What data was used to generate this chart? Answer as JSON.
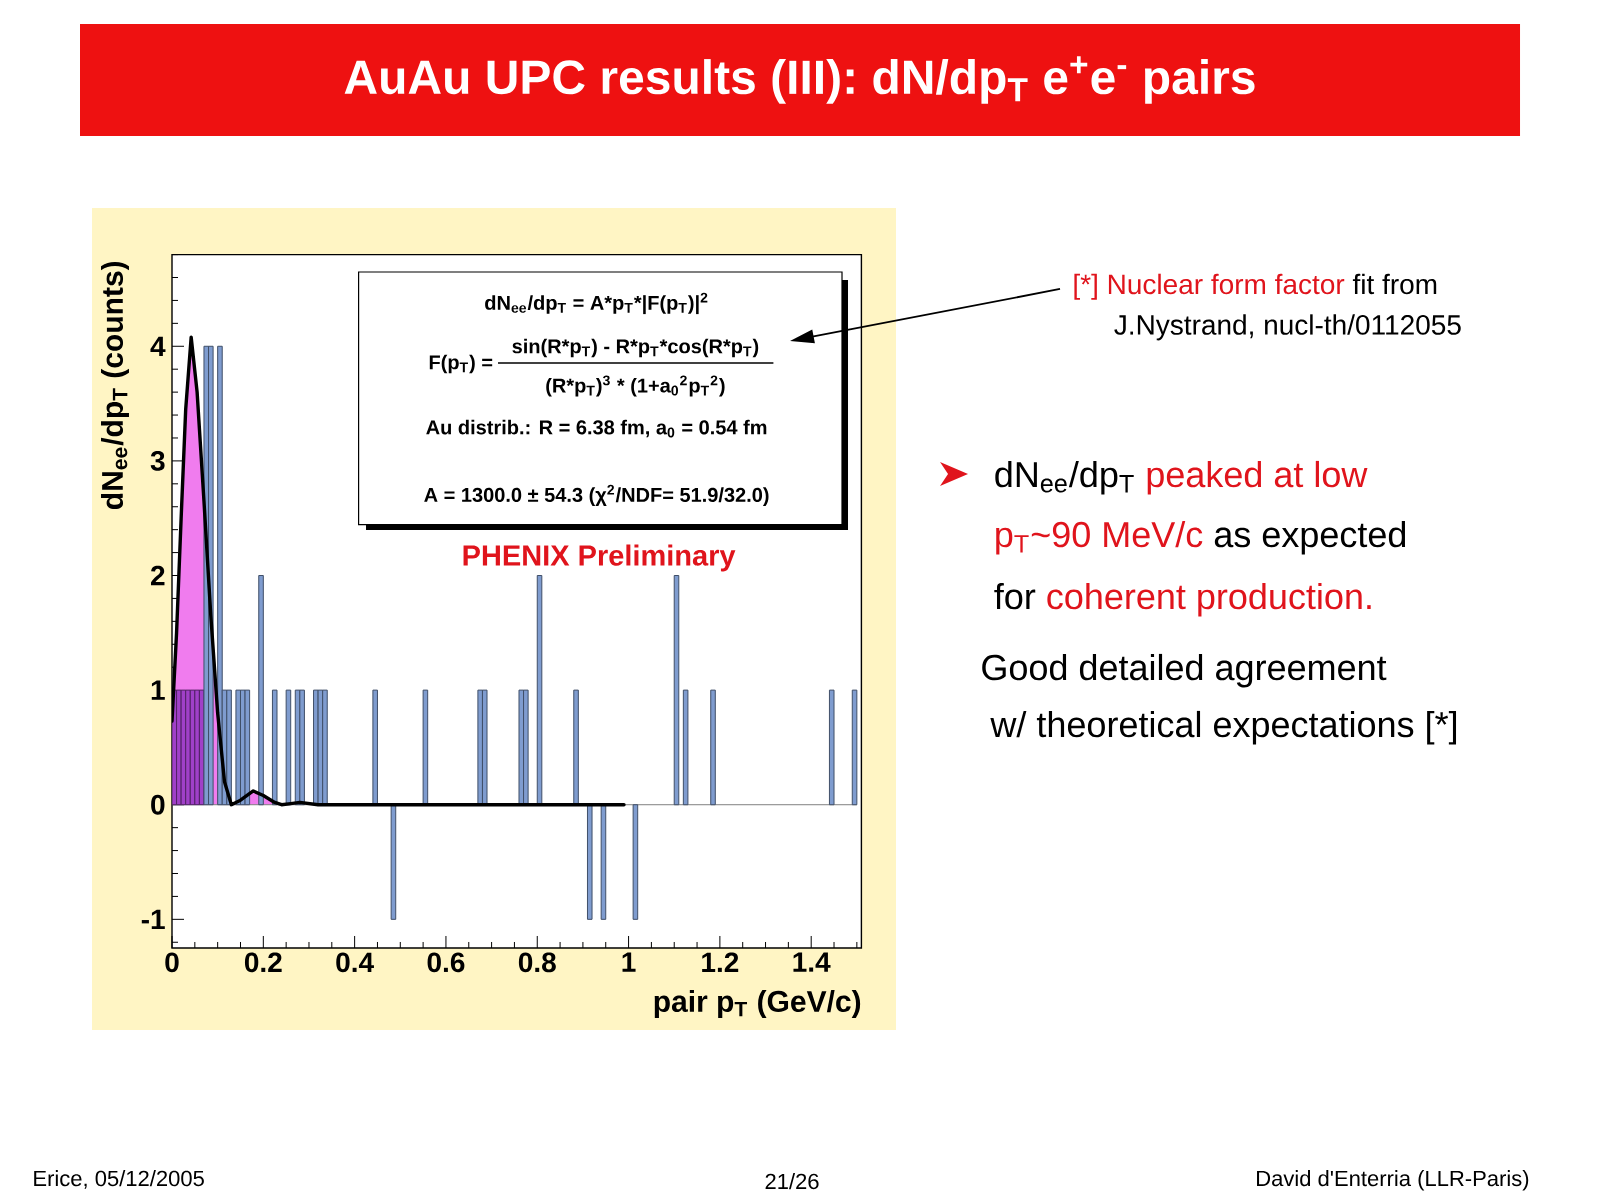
{
  "chart_data": {
    "type": "histogram",
    "title": "AuAu UPC results (III): dN/dp$_{T}$ e$^{+}$e$^{-}$ pairs",
    "xlabel": "pair p$_{T}$ (GeV/c)",
    "ylabel": "dN$_{ee}$/dp$_{T}$ (counts)",
    "xlim": [
      0,
      1.51
    ],
    "ylim": [
      -1.25,
      4.8
    ],
    "xticks": [
      0,
      0.2,
      0.4,
      0.6,
      0.8,
      1,
      1.2,
      1.4
    ],
    "yticks": [
      -1,
      0,
      1,
      2,
      3,
      4
    ],
    "series": [
      {
        "type": "area",
        "color": "#f07cee",
        "x": [
          0,
          0.01,
          0.02,
          0.03,
          0.042,
          0.055,
          0.07,
          0.085,
          0.1,
          0.115,
          0.13,
          0.15,
          0.178,
          0.2,
          0.225,
          0.24
        ],
        "values": [
          0.73,
          1.5,
          2.5,
          3.45,
          4.08,
          3.6,
          2.65,
          1.65,
          0.8,
          0.2,
          0.0,
          0.04,
          0.12,
          0.08,
          0.02,
          0.0
        ]
      },
      {
        "color": "#a040c8",
        "bins": [
          0,
          0.01,
          0.02,
          0.03,
          0.04,
          0.05,
          0.06,
          0.07
        ],
        "values": [
          1,
          1,
          1,
          1,
          1,
          1,
          1
        ]
      },
      {
        "color": "#7f9ccf",
        "bins": [
          0.07,
          0.08,
          0.09,
          0.1,
          0.11,
          0.12,
          0.13,
          0.14,
          0.15,
          0.16,
          0.17,
          0.18,
          0.19,
          0.2,
          0.21,
          0.22,
          0.23,
          0.24,
          0.25,
          0.26,
          0.27,
          0.28,
          0.29,
          0.3,
          0.31,
          0.32,
          0.33,
          0.34,
          0.35,
          0.36,
          0.37,
          0.38,
          0.39,
          0.4,
          0.41,
          0.42,
          0.43,
          0.44,
          0.45,
          0.46,
          0.47,
          0.48,
          0.49,
          0.5,
          0.51,
          0.52,
          0.53,
          0.54,
          0.55,
          0.56,
          0.57,
          0.58,
          0.59,
          0.6,
          0.61,
          0.62,
          0.63,
          0.64,
          0.65,
          0.66,
          0.67,
          0.68,
          0.69,
          0.7,
          0.71,
          0.72,
          0.73,
          0.74,
          0.75,
          0.76,
          0.77,
          0.78,
          0.79,
          0.8,
          0.81,
          0.82,
          0.83,
          0.84,
          0.85,
          0.86,
          0.87,
          0.88,
          0.89,
          0.9,
          0.91,
          0.92,
          0.93,
          0.94,
          0.95,
          0.96,
          0.97,
          0.98,
          0.99,
          1.0,
          1.01,
          1.02,
          1.03,
          1.04,
          1.05,
          1.06,
          1.07,
          1.08,
          1.09,
          1.1,
          1.11,
          1.12,
          1.13,
          1.14,
          1.15,
          1.16,
          1.17,
          1.18,
          1.19,
          1.2,
          1.21,
          1.22,
          1.23,
          1.24,
          1.25,
          1.26,
          1.27,
          1.28,
          1.29,
          1.3,
          1.31,
          1.32,
          1.33,
          1.34,
          1.35,
          1.36,
          1.37,
          1.38,
          1.39,
          1.4,
          1.41,
          1.42,
          1.43,
          1.44,
          1.45,
          1.46,
          1.47,
          1.48,
          1.49,
          1.5
        ],
        "values": [
          4,
          4,
          0,
          4,
          1,
          1,
          0,
          1,
          1,
          1,
          0,
          0,
          2,
          0,
          0,
          1,
          0,
          0,
          1,
          0,
          1,
          1,
          0,
          0,
          1,
          1,
          1,
          0,
          0,
          0,
          0,
          0,
          0,
          0,
          0,
          0,
          0,
          1,
          0,
          0,
          0,
          -1,
          0,
          0,
          0,
          0,
          0,
          0,
          1,
          0,
          0,
          0,
          0,
          0,
          0,
          0,
          0,
          0,
          0,
          0,
          1,
          1,
          0,
          0,
          0,
          0,
          0,
          0,
          0,
          1,
          1,
          0,
          0,
          2,
          0,
          0,
          0,
          0,
          0,
          0,
          0,
          1,
          0,
          0,
          -1,
          0,
          0,
          -1,
          0,
          0,
          0,
          0,
          0,
          0,
          -1,
          0,
          0,
          0,
          0,
          0,
          0,
          0,
          0,
          2,
          0,
          1,
          0,
          0,
          0,
          0,
          0,
          1,
          0,
          0,
          0,
          0,
          0,
          0,
          0,
          0,
          0,
          0,
          0,
          0,
          0,
          0,
          0,
          0,
          0,
          0,
          0,
          0,
          0,
          0,
          0,
          0,
          0,
          1,
          0,
          0,
          0,
          0,
          1
        ]
      },
      {
        "type": "line",
        "color": "#000000",
        "x": [
          0,
          0.01,
          0.02,
          0.03,
          0.042,
          0.055,
          0.07,
          0.085,
          0.1,
          0.115,
          0.13,
          0.15,
          0.178,
          0.2,
          0.225,
          0.24,
          0.26,
          0.28,
          0.3,
          0.32,
          0.99
        ],
        "values": [
          0.73,
          1.5,
          2.5,
          3.45,
          4.08,
          3.6,
          2.65,
          1.65,
          0.8,
          0.2,
          0.0,
          0.04,
          0.12,
          0.08,
          0.02,
          0.0,
          0.01,
          0.02,
          0.01,
          0.0,
          0.0
        ]
      }
    ],
    "annotations": [
      "dN$_{ee}$/dp$_{T}$ = A*p$_{T}$*|F(p$_{T}$)|$^{2}$",
      "F(p$_{T}$) =",
      "sin(R*p$_{T}$) - R*p$_{T}$*cos(R*p$_{T}$)",
      "(R*p$_{T}$)$^{3}$ * (1+a$_{0}$$^{2}$p$_{T}$$^{2}$)",
      "Au distrib.: R = 6.38 fm, a$_{0}$ = 0.54 fm",
      "A = 1300.0 ± 54.3 (χ$^{2}$/NDF= 51.9/32.0)",
      "PHENIX Preliminary",
      "[*] Nuclear form factor",
      "fit from",
      "J.Nystrand, nucl-th/0112055",
      "dN$_{ee}$/dp$_{T}$",
      "peaked at low",
      "p$_{T}$~90 MeV/c",
      "as expected",
      "for",
      "coherent production.",
      "Good detailed agreement",
      "w/ theoretical expectations [*]",
      "Erice, 05/12/2005",
      "21/26",
      "David d'Enterria (LLR-Paris)"
    ]
  }
}
